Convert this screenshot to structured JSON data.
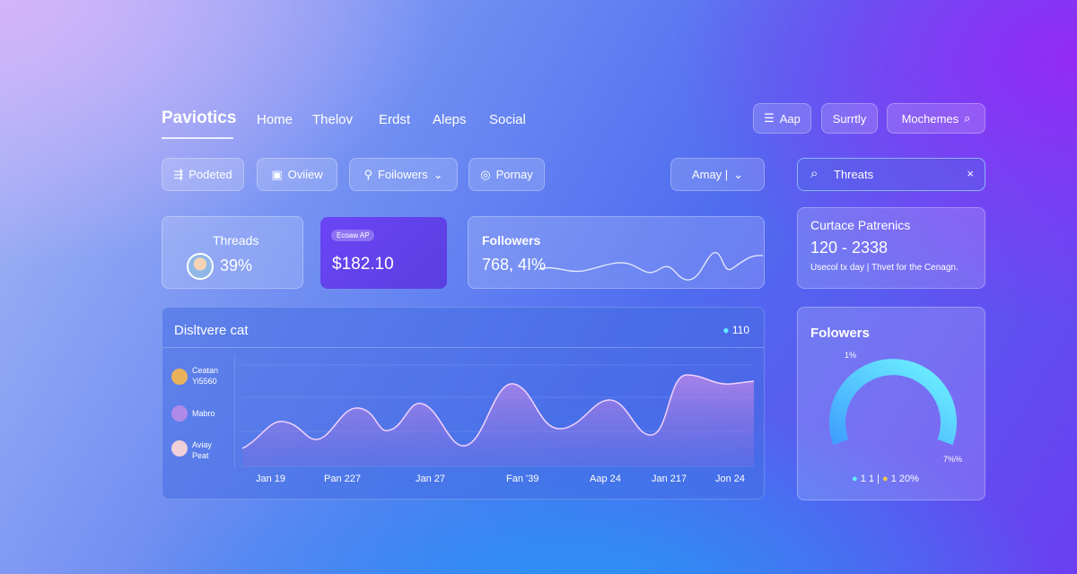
{
  "header": {
    "brand": "Paviotics",
    "nav": [
      "Home",
      "Thelov",
      "Erdst",
      "Aleps",
      "Social"
    ],
    "buttons": [
      "Aap",
      "Surrtly",
      "Mochemes"
    ]
  },
  "filters": {
    "chips": [
      "Podeted",
      "Oviiew",
      "Foilowers",
      "Pornay"
    ],
    "dropdown": "Amay |",
    "search": "Threats"
  },
  "cards": [
    {
      "title": "Threads",
      "value": "39%"
    },
    {
      "badge": "Ecoaw AP",
      "value": "$182.10"
    },
    {
      "title": "Followers",
      "value": "768, 4I%"
    },
    {
      "title": "Curtace Patrenics",
      "value": "120 - 2338",
      "note": "Usecol tx day | Thvet for the Cenagn."
    }
  ],
  "main_chart": {
    "title": "Disltvere cat",
    "badge": "110",
    "legend": [
      "Ceatan Yi5560",
      "Mabro",
      "Aviay Peat"
    ],
    "x_labels": [
      "Jan 19",
      "Pan 227",
      "Jan 27",
      "Fan '39",
      "Aap 24",
      "Jan 217",
      "Jon 24"
    ]
  },
  "gauge": {
    "title": "Folowers",
    "top_label": "1%",
    "right_label": "7%%",
    "legend": [
      "1 1 |",
      "1 20%"
    ]
  }
}
